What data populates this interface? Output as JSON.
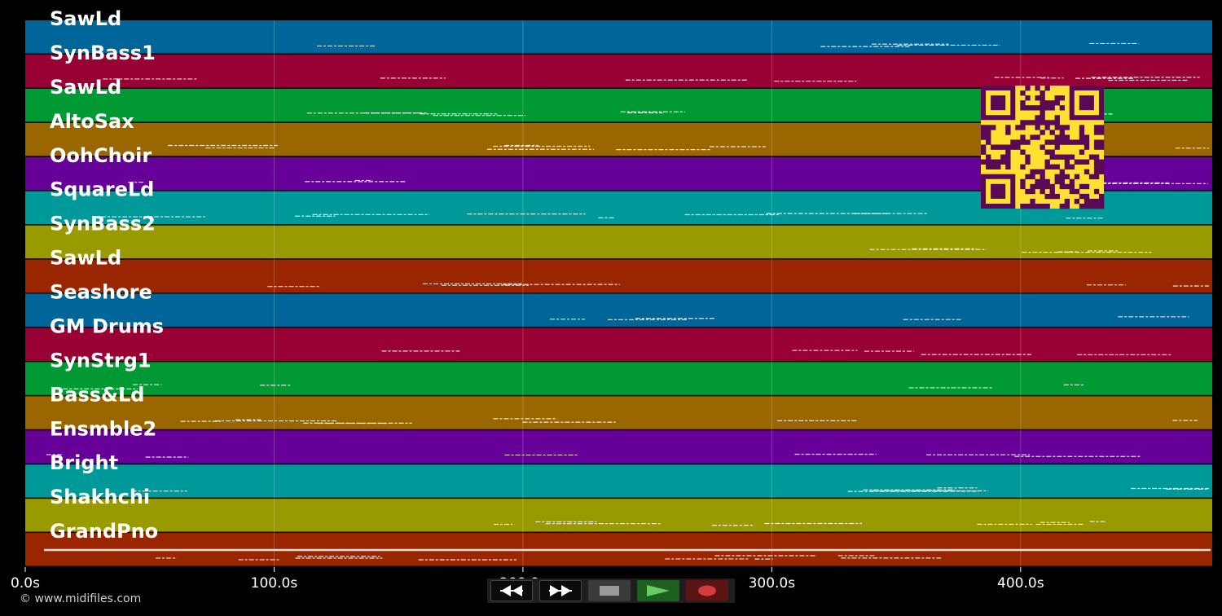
{
  "tracks": [
    {
      "label": "SawLd",
      "color": "#006699"
    },
    {
      "label": "SynBass1",
      "color": "#990033"
    },
    {
      "label": "SawLd",
      "color": "#009933"
    },
    {
      "label": "AltoSax",
      "color": "#996600"
    },
    {
      "label": "OohChoir",
      "color": "#660099"
    },
    {
      "label": "SquareLd",
      "color": "#009999"
    },
    {
      "label": "SynBass2",
      "color": "#999900"
    },
    {
      "label": "SawLd",
      "color": "#992600"
    },
    {
      "label": "Seashore",
      "color": "#006699"
    },
    {
      "label": "GM Drums",
      "color": "#990033"
    },
    {
      "label": "SynStrg1",
      "color": "#009933"
    },
    {
      "label": "Bass&Ld",
      "color": "#996600"
    },
    {
      "label": "Ensmble2",
      "color": "#660099"
    },
    {
      "label": "Bright",
      "color": "#009999"
    },
    {
      "label": "Shakhchi",
      "color": "#999900"
    },
    {
      "label": "GrandPno",
      "color": "#992600"
    }
  ],
  "time_axis": {
    "max_seconds": 477,
    "ticks": [
      {
        "value": 0,
        "label": "0.0s"
      },
      {
        "value": 100,
        "label": "100.0s"
      },
      {
        "value": 200,
        "label": "200.0s"
      },
      {
        "value": 300,
        "label": "300.0s"
      },
      {
        "value": 400,
        "label": "400.0s"
      }
    ]
  },
  "copyright": "© www.midifiles.com",
  "transport": {
    "rewind_icon": "rewind-icon",
    "forward_icon": "fast-forward-icon",
    "stop_icon": "stop-icon",
    "play_icon": "play-icon",
    "record_icon": "record-icon"
  },
  "qr_code": {
    "fg": "#5a0a55",
    "bg": "#ffe033"
  }
}
